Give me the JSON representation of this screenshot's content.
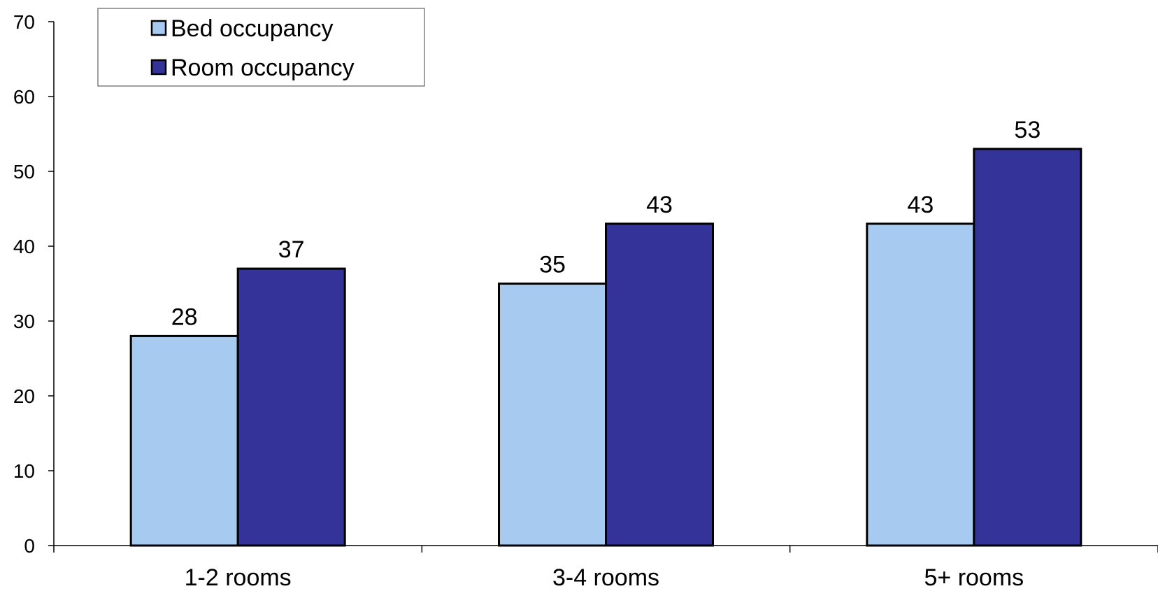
{
  "chart_data": {
    "type": "bar",
    "categories": [
      "1-2 rooms",
      "3-4 rooms",
      "5+ rooms"
    ],
    "series": [
      {
        "name": "Bed occupancy",
        "values": [
          28,
          35,
          43
        ],
        "color": "#A6CAF0"
      },
      {
        "name": "Room occupancy",
        "values": [
          37,
          43,
          53
        ],
        "color": "#333399"
      }
    ],
    "ylim": [
      0,
      70
    ],
    "yticks": [
      0,
      10,
      20,
      30,
      40,
      50,
      60,
      70
    ],
    "xlabel": "",
    "ylabel": "",
    "title": "",
    "grid": false,
    "legend": "top-left",
    "data_labels": true
  }
}
